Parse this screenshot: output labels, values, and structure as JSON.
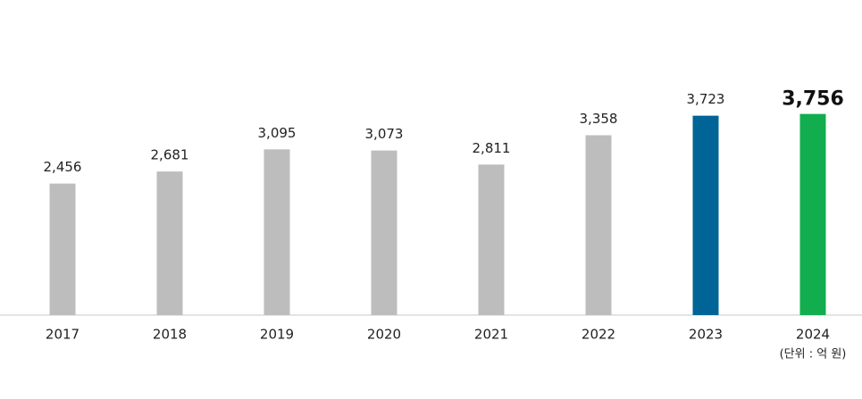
{
  "chart_data": {
    "type": "bar",
    "categories": [
      "2017",
      "2018",
      "2019",
      "2020",
      "2021",
      "2022",
      "2023",
      "2024"
    ],
    "values": [
      2456,
      2681,
      3095,
      3073,
      2811,
      3358,
      3723,
      3756
    ],
    "value_labels": [
      "2,456",
      "2,681",
      "3,095",
      "3,073",
      "2,811",
      "3,358",
      "3,723",
      "3,756"
    ],
    "colors": [
      "#bdbdbd",
      "#bdbdbd",
      "#bdbdbd",
      "#bdbdbd",
      "#bdbdbd",
      "#bdbdbd",
      "#006496",
      "#12ad4f"
    ],
    "highlight_index": 7,
    "ylim": [
      0,
      4000
    ],
    "annotation": "(단위 : 억 원)"
  }
}
